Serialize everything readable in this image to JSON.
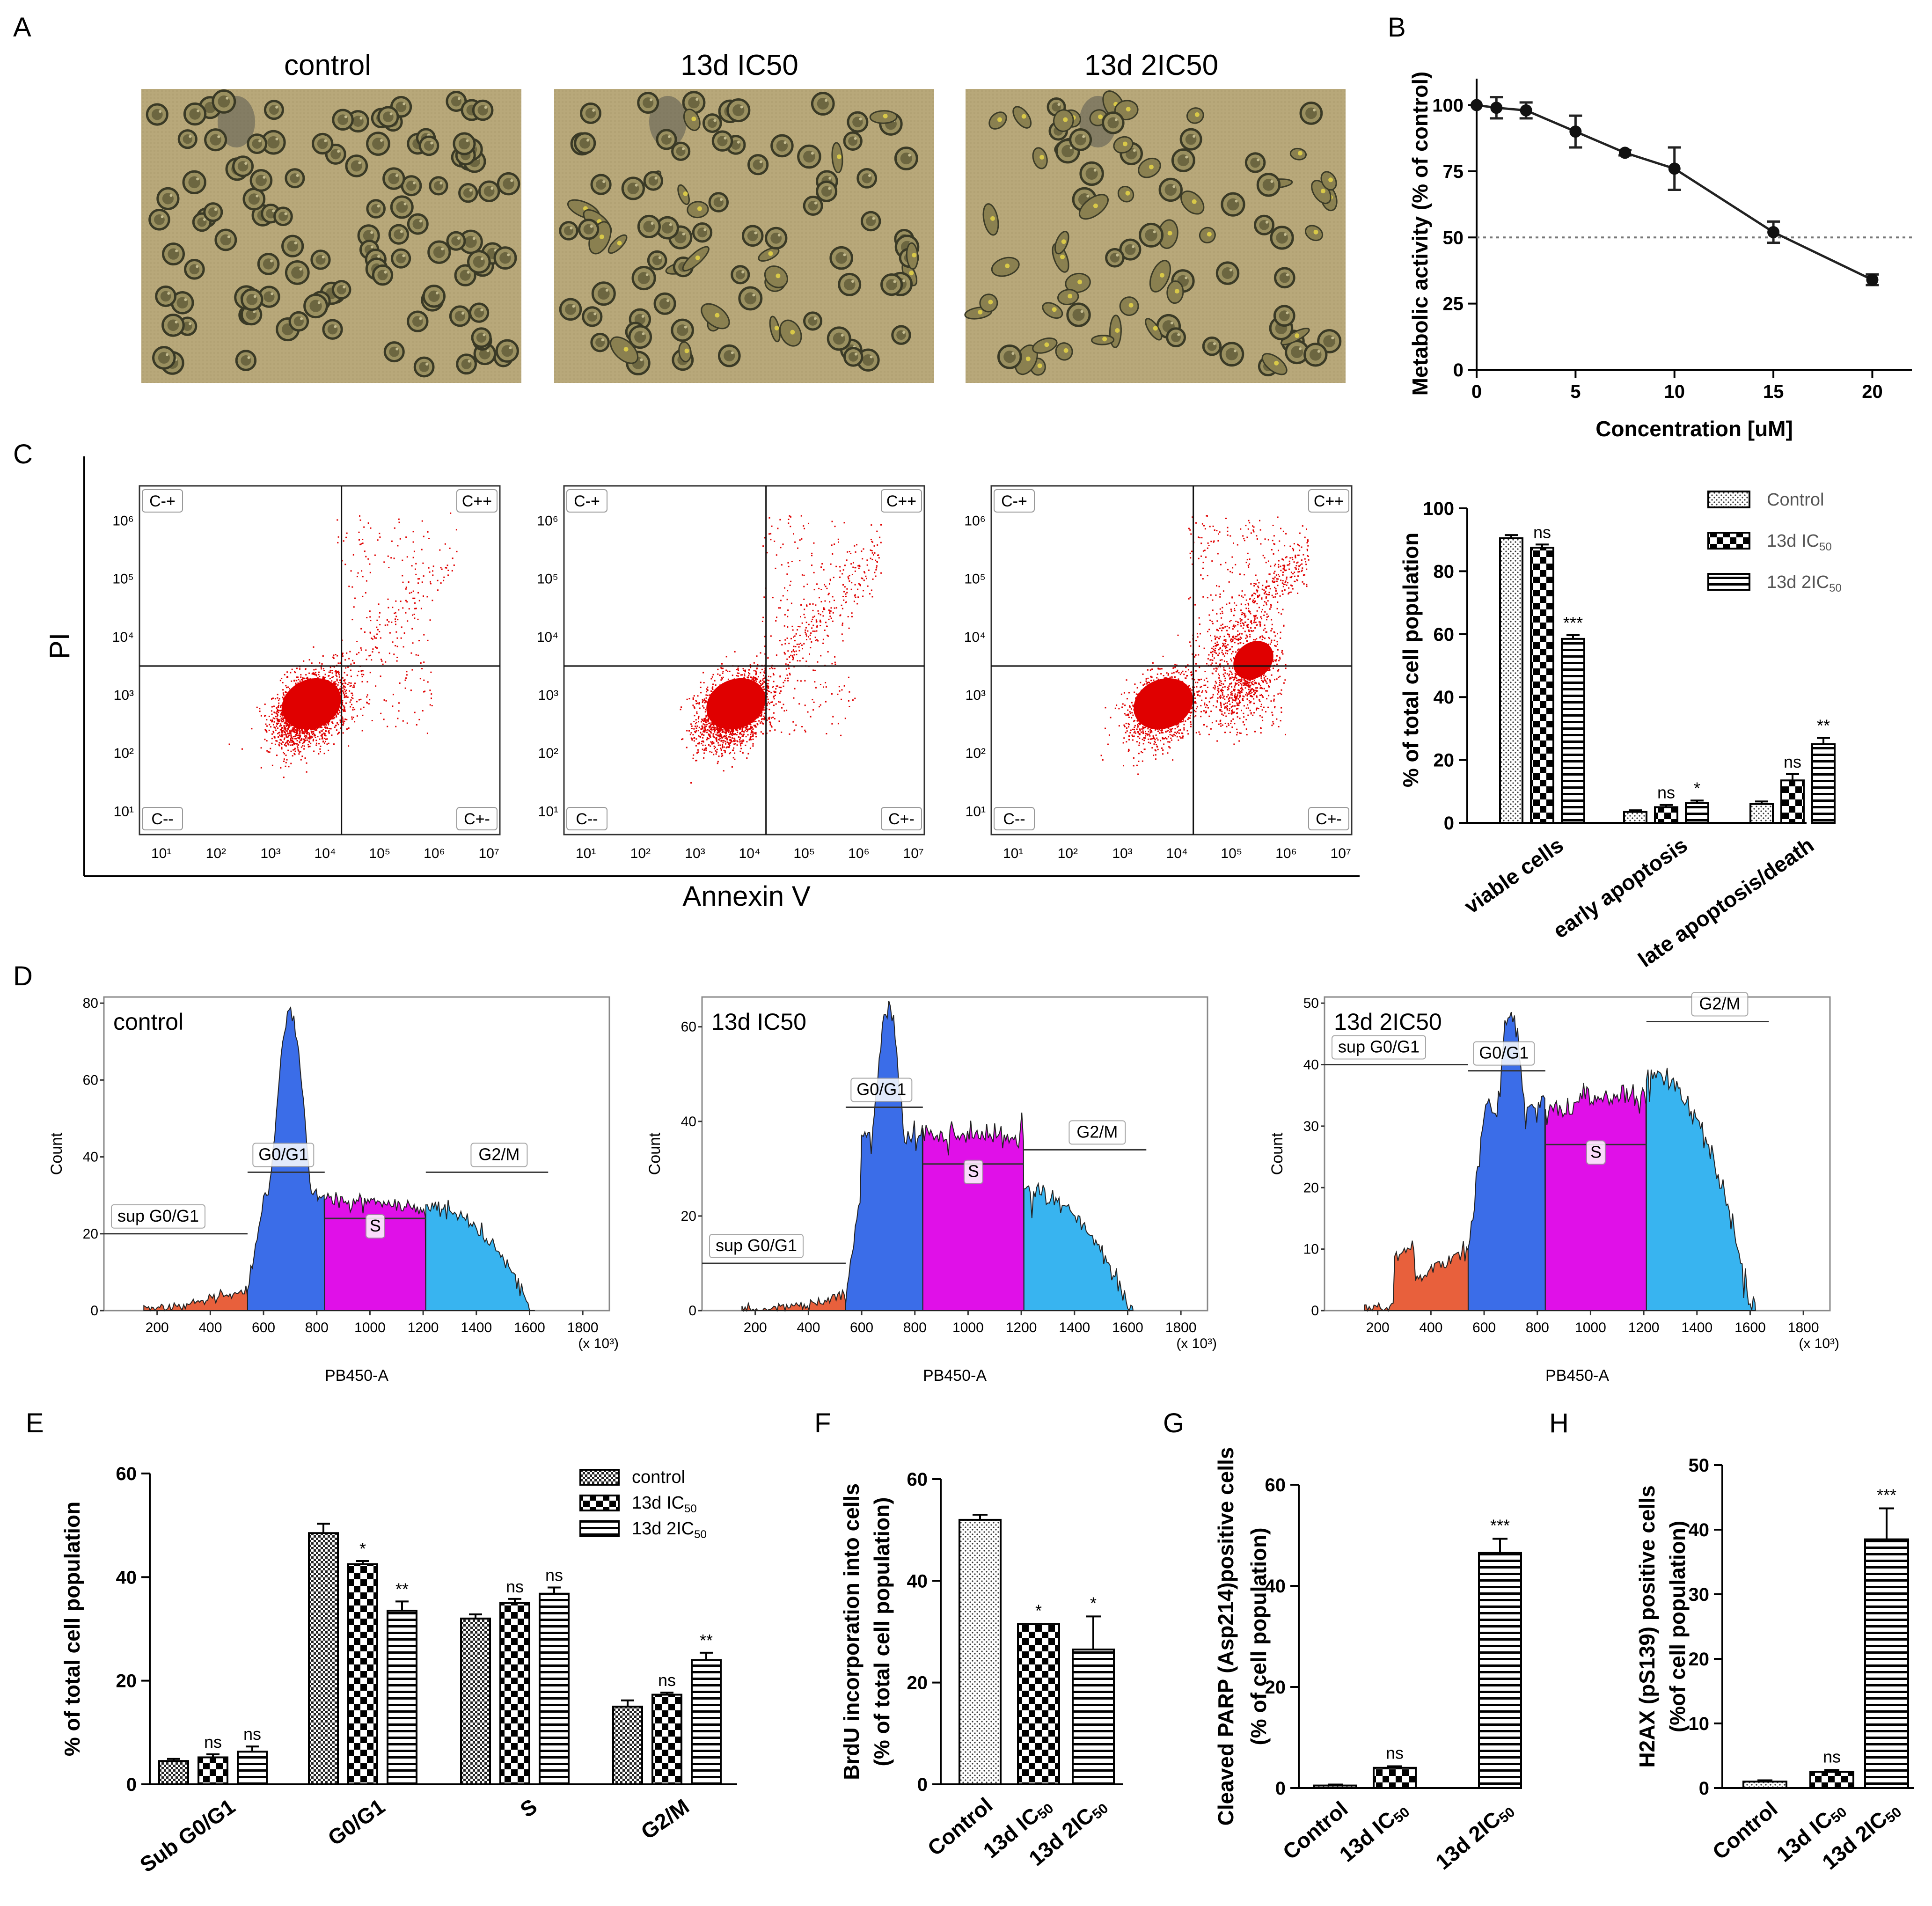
{
  "figure": {
    "panels": [
      "A",
      "B",
      "C",
      "D",
      "E",
      "F",
      "G",
      "H"
    ]
  },
  "colors": {
    "scatter": "#e00000",
    "sub_g0g1": "#e8603c",
    "g0g1": "#3b6de8",
    "s": "#e010e8",
    "g2m": "#38b4f0",
    "micro_bg": "#b8a87a",
    "micro_cell": "#4a4a30"
  },
  "panelA": {
    "images": [
      {
        "title": "control"
      },
      {
        "title": "13d IC50"
      },
      {
        "title": "13d 2IC50"
      }
    ]
  },
  "chart_data": [
    {
      "id": "B",
      "type": "line",
      "x": [
        0,
        1,
        2.5,
        5,
        7.5,
        10,
        15,
        20
      ],
      "y": [
        100,
        99,
        98,
        90,
        82,
        76,
        52,
        34
      ],
      "err": [
        0,
        4,
        3,
        6,
        1,
        8,
        4,
        2
      ],
      "xlabel": "Concentration [uM]",
      "ylabel": "Metabolic activity (% of control)",
      "xlim": [
        0,
        22
      ],
      "ylim": [
        0,
        110
      ],
      "xticks": [
        "0",
        "5",
        "10",
        "15",
        "20"
      ],
      "yticks": [
        "0",
        "25",
        "50",
        "75",
        "100"
      ],
      "reference_line": 50
    },
    {
      "id": "C-bar",
      "type": "bar",
      "categories": [
        "viable cells",
        "early apoptosis",
        "late apoptosis/death"
      ],
      "series": [
        {
          "name": "Control",
          "values": [
            90.5,
            3.5,
            6
          ],
          "err": [
            1,
            0.5,
            0.8
          ],
          "pattern": "dots"
        },
        {
          "name": "13d IC",
          "sub": "50",
          "values": [
            87.5,
            5,
            13.5
          ],
          "err": [
            1,
            0.7,
            2
          ],
          "pattern": "checker"
        },
        {
          "name": "13d 2IC",
          "sub": "50",
          "values": [
            58.5,
            6.3,
            25
          ],
          "err": [
            1.2,
            0.8,
            2
          ],
          "pattern": "hstripe"
        }
      ],
      "significance": [
        [
          "",
          "",
          ""
        ],
        [
          "ns",
          "ns",
          "ns"
        ],
        [
          "***",
          "*",
          "**"
        ]
      ],
      "ylabel": "% of total cell population",
      "ylim": [
        0,
        100
      ],
      "yticks": [
        "0",
        "20",
        "40",
        "60",
        "80",
        "100"
      ]
    },
    {
      "id": "E",
      "type": "bar",
      "categories": [
        "Sub G0/G1",
        "G0/G1",
        "S",
        "G2/M"
      ],
      "series": [
        {
          "name": "control",
          "values": [
            4.5,
            48.5,
            32,
            15
          ],
          "err": [
            0.4,
            1.8,
            0.8,
            1.2
          ],
          "pattern": "checkersmall"
        },
        {
          "name": "13d IC",
          "sub": "50",
          "values": [
            5.2,
            42.5,
            35,
            17.3
          ],
          "err": [
            0.6,
            0.6,
            0.8,
            0.4
          ],
          "pattern": "checker"
        },
        {
          "name": "13d 2IC",
          "sub": "50",
          "values": [
            6.3,
            33.5,
            36.8,
            24
          ],
          "err": [
            1,
            1.8,
            1.2,
            1.4
          ],
          "pattern": "hstripe"
        }
      ],
      "significance": [
        [
          "",
          "",
          "",
          ""
        ],
        [
          "ns",
          "*",
          "ns",
          "ns"
        ],
        [
          "ns",
          "**",
          "ns",
          "**"
        ]
      ],
      "ylabel": "% of total cell population",
      "ylim": [
        0,
        60
      ],
      "yticks": [
        "0",
        "20",
        "40",
        "60"
      ]
    },
    {
      "id": "F",
      "type": "bar",
      "categories": [
        "Control",
        "13d IC",
        "13d 2IC"
      ],
      "cat_sub": [
        "",
        "50",
        "50"
      ],
      "values": [
        52,
        31.5,
        26.5
      ],
      "err": [
        1,
        0,
        6.5
      ],
      "patterns": [
        "dots",
        "checker",
        "hstripe"
      ],
      "significance": [
        "",
        "*",
        "*"
      ],
      "ylabel": "BrdU incorporation into cells",
      "ylabel2": "(% of total cell population)",
      "ylim": [
        0,
        60
      ],
      "yticks": [
        "0",
        "20",
        "40",
        "60"
      ]
    },
    {
      "id": "G",
      "type": "bar",
      "categories": [
        "Control",
        "13d IC",
        "13d 2IC"
      ],
      "cat_sub": [
        "",
        "50",
        "50"
      ],
      "values": [
        0.5,
        4,
        46.5
      ],
      "err": [
        0.2,
        0.3,
        2.8
      ],
      "patterns": [
        "dots",
        "checker",
        "hstripe"
      ],
      "significance": [
        "",
        "ns",
        "***"
      ],
      "ylabel": "Cleaved PARP (Asp214)positive cells",
      "ylabel2": "(% of cell population)",
      "ylim": [
        0,
        60
      ],
      "yticks": [
        "0",
        "20",
        "40",
        "60"
      ]
    },
    {
      "id": "H",
      "type": "bar",
      "categories": [
        "Control",
        "13d IC",
        "13d 2IC"
      ],
      "cat_sub": [
        "",
        "50",
        "50"
      ],
      "values": [
        1,
        2.5,
        38.5
      ],
      "err": [
        0.2,
        0.3,
        4.8
      ],
      "patterns": [
        "dots",
        "checker",
        "hstripe"
      ],
      "significance": [
        "",
        "ns",
        "***"
      ],
      "ylabel": "H2AX (pS139) positive cells",
      "ylabel2": "(%of cell population)",
      "ylim": [
        0,
        50
      ],
      "yticks": [
        "0",
        "10",
        "20",
        "30",
        "40",
        "50"
      ]
    }
  ],
  "panelC_scatter": {
    "ylabel": "PI",
    "xlabel": "Annexin V",
    "quadrants": [
      "C-+",
      "C++",
      "C--",
      "C+-"
    ],
    "ticks": [
      "10¹",
      "10²",
      "10³",
      "10⁴",
      "10⁵",
      "10⁶",
      "10⁷"
    ],
    "plots": [
      {
        "name": "control",
        "main_pct": 0.9,
        "late_pct": 0.06
      },
      {
        "name": "13d IC50",
        "main_pct": 0.85,
        "late_pct": 0.12
      },
      {
        "name": "13d 2IC50",
        "main_pct": 0.6,
        "late_pct": 0.35
      }
    ]
  },
  "panelD_hist": {
    "xlabel": "PB450-A",
    "ylabel": "Count",
    "xscale_note": "(x 10³)",
    "xticks": [
      "200",
      "400",
      "600",
      "800",
      "1000",
      "1200",
      "1400",
      "1600",
      "1800"
    ],
    "gates": [
      "sup G0/G1",
      "G0/G1",
      "S",
      "G2/M"
    ],
    "plots": [
      {
        "title": "control",
        "ymax": 80,
        "yticks": [
          "0",
          "20",
          "40",
          "60",
          "80"
        ],
        "peak": 78,
        "s_level": 30,
        "g2_level": 26,
        "sub_level": 4
      },
      {
        "title": "13d IC50",
        "ymax": 65,
        "yticks": [
          "0",
          "20",
          "40",
          "60"
        ],
        "peak": 64,
        "s_level": 37,
        "g2_level": 24,
        "sub_level": 2
      },
      {
        "title": "13d 2IC50",
        "ymax": 50,
        "yticks": [
          "0",
          "10",
          "20",
          "30",
          "40",
          "50"
        ],
        "peak": 49,
        "s_level": 33,
        "g2_level": 37,
        "sub_level": 8
      }
    ]
  }
}
